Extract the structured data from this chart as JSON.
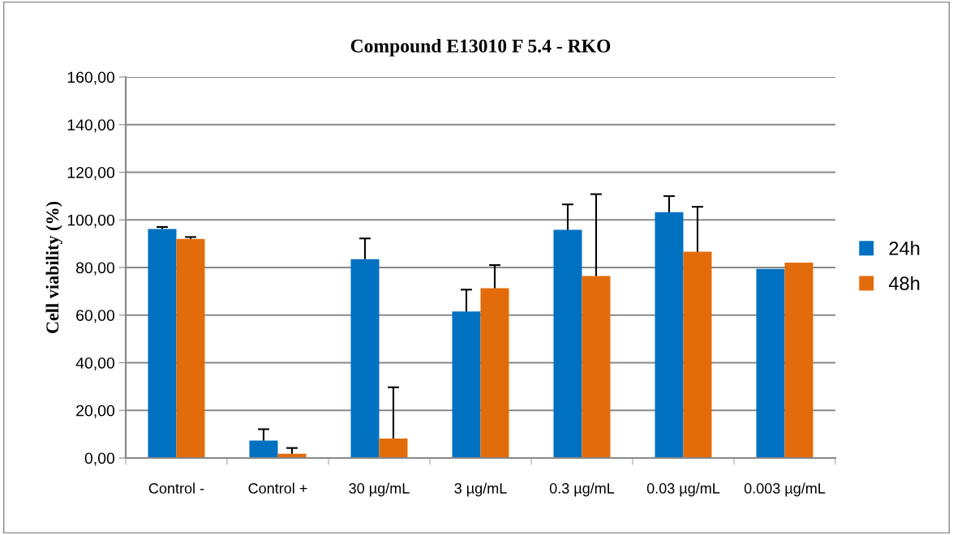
{
  "chart_data": {
    "type": "bar",
    "title": "Compound E13010 F 5.4 - RKO",
    "ylabel": "Cell viability (%)",
    "categories": [
      "Control -",
      "Control +",
      "30 µg/mL",
      "3 µg/mL",
      "0.3 µg/mL",
      "0.03 µg/mL",
      "0.003 µg/mL"
    ],
    "series": [
      {
        "name": "24h",
        "color": "#0070c0",
        "values": [
          96.2,
          7.3,
          83.5,
          61.5,
          95.8,
          103.2,
          79.4
        ],
        "errors": [
          [
            96.2,
            97.0
          ],
          [
            7.3,
            12.1
          ],
          [
            83.5,
            92.2
          ],
          [
            61.5,
            70.7
          ],
          [
            95.8,
            106.5
          ],
          [
            103.2,
            110.0
          ],
          null
        ]
      },
      {
        "name": "48h",
        "color": "#e36c0a",
        "values": [
          92.0,
          1.8,
          8.2,
          71.3,
          76.4,
          86.6,
          82.0
        ],
        "errors": [
          [
            92.0,
            92.8
          ],
          [
            1.8,
            4.2
          ],
          [
            8.2,
            29.7
          ],
          [
            71.3,
            81.0
          ],
          [
            76.4,
            110.8
          ],
          [
            86.6,
            105.5
          ],
          null
        ]
      }
    ],
    "ylim": [
      0,
      160
    ],
    "yticks": [
      {
        "value": 0,
        "label": "0,00"
      },
      {
        "value": 20,
        "label": "20,00"
      },
      {
        "value": 40,
        "label": "40,00"
      },
      {
        "value": 60,
        "label": "60,00"
      },
      {
        "value": 80,
        "label": "80,00"
      },
      {
        "value": 100,
        "label": "100,00"
      },
      {
        "value": 120,
        "label": "120,00"
      },
      {
        "value": 140,
        "label": "140,00"
      },
      {
        "value": 160,
        "label": "160,00"
      }
    ],
    "grid": "y",
    "legend": "right"
  }
}
